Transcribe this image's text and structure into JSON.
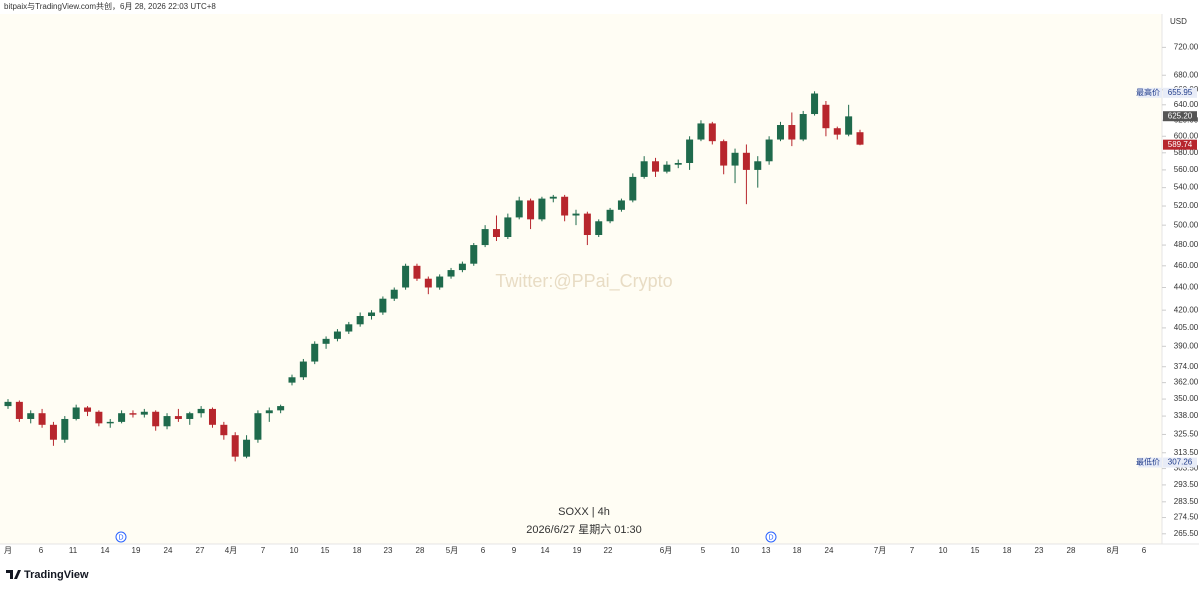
{
  "header": "bitpaix与TradingView.com共创，6月 28, 2026 22:03 UTC+8",
  "logo": "TradingView",
  "watermark": "Twitter:@PPai_Crypto",
  "chart_data": {
    "type": "candlestick",
    "title": "SOXX | 4h",
    "subtitle": "2026/6/27 星期六 01:30",
    "y_axis_label": "USD",
    "log_scale": true,
    "up_color": "#1f6a4c",
    "down_color": "#b7262d",
    "ylim": [
      260,
      771
    ],
    "yticks": [
      {
        "value": 720,
        "label": "720.00"
      },
      {
        "value": 680,
        "label": "680.00"
      },
      {
        "value": 660,
        "label": "660.00"
      },
      {
        "value": 640,
        "label": "640.00"
      },
      {
        "value": 620,
        "label": "620.00"
      },
      {
        "value": 600,
        "label": "600.00"
      },
      {
        "value": 580,
        "label": "580.00"
      },
      {
        "value": 560,
        "label": "560.00"
      },
      {
        "value": 540,
        "label": "540.00"
      },
      {
        "value": 520,
        "label": "520.00"
      },
      {
        "value": 500,
        "label": "500.00"
      },
      {
        "value": 480,
        "label": "480.00"
      },
      {
        "value": 460,
        "label": "460.00"
      },
      {
        "value": 440,
        "label": "440.00"
      },
      {
        "value": 420,
        "label": "420.00"
      },
      {
        "value": 405,
        "label": "405.00"
      },
      {
        "value": 390,
        "label": "390.00"
      },
      {
        "value": 374,
        "label": "374.00"
      },
      {
        "value": 362,
        "label": "362.00"
      },
      {
        "value": 350,
        "label": "350.00"
      },
      {
        "value": 338,
        "label": "338.00"
      },
      {
        "value": 325.5,
        "label": "325.50"
      },
      {
        "value": 313.5,
        "label": "313.50"
      },
      {
        "value": 303.5,
        "label": "303.50"
      },
      {
        "value": 293.5,
        "label": "293.50"
      },
      {
        "value": 283.5,
        "label": "283.50"
      },
      {
        "value": 274.5,
        "label": "274.50"
      },
      {
        "value": 265.5,
        "label": "265.50"
      }
    ],
    "x_labels": [
      "月",
      "6",
      "11",
      "14",
      "19",
      "24",
      "27",
      "4月",
      "7",
      "10",
      "15",
      "18",
      "23",
      "28",
      "5月",
      "6",
      "9",
      "14",
      "19",
      "22",
      "6月",
      "5",
      "10",
      "13",
      "18",
      "24",
      "7月",
      "7",
      "10",
      "15",
      "18",
      "23",
      "28",
      "8月",
      "6"
    ],
    "event_markers": [
      "D",
      "D"
    ],
    "markers": [
      {
        "name": "最高价",
        "value": 655.95
      },
      {
        "name": "最低价",
        "value": 307.26
      }
    ],
    "last_price": {
      "value": 625.2,
      "label": "625.20"
    },
    "current_price": 589.74,
    "open": [
      345,
      348,
      336,
      340,
      332,
      322,
      336,
      344,
      341,
      333,
      334,
      340,
      339,
      341,
      331,
      338,
      336,
      340,
      343,
      332,
      325,
      311,
      322,
      340,
      342,
      362,
      366,
      378,
      392,
      396,
      402,
      408,
      415,
      418,
      430,
      440,
      460,
      448,
      440,
      450,
      456,
      462,
      480,
      496,
      488,
      508,
      526,
      506,
      528,
      530,
      510,
      512,
      490,
      504,
      516,
      526,
      552,
      570,
      558,
      566,
      568,
      596,
      616,
      594,
      565,
      580,
      560,
      570,
      596,
      614,
      596,
      628,
      640,
      610,
      602,
      605
    ],
    "high": [
      350,
      349,
      342,
      343,
      334,
      338,
      346,
      345,
      342,
      336,
      342,
      342,
      343,
      342,
      340,
      343,
      341,
      345,
      344,
      334,
      327,
      325,
      342,
      344,
      346,
      368,
      380,
      394,
      398,
      404,
      410,
      418,
      420,
      432,
      440,
      462,
      462,
      450,
      452,
      458,
      464,
      482,
      500,
      510,
      512,
      530,
      528,
      530,
      532,
      532,
      516,
      514,
      506,
      518,
      528,
      556,
      576,
      574,
      570,
      572,
      600,
      620,
      618,
      596,
      585,
      590,
      576,
      600,
      618,
      630,
      632,
      658,
      645,
      612,
      640,
      608
    ],
    "low": [
      343,
      334,
      333,
      330,
      318,
      320,
      335,
      338,
      331,
      330,
      333,
      337,
      337,
      328,
      329,
      334,
      332,
      337,
      330,
      322,
      308,
      310,
      320,
      334,
      340,
      360,
      364,
      376,
      388,
      394,
      400,
      406,
      412,
      416,
      428,
      438,
      446,
      434,
      438,
      448,
      454,
      460,
      478,
      484,
      486,
      506,
      496,
      504,
      524,
      504,
      500,
      480,
      488,
      502,
      514,
      524,
      550,
      552,
      556,
      562,
      560,
      594,
      590,
      555,
      545,
      522,
      540,
      566,
      594,
      588,
      594,
      626,
      600,
      596,
      600,
      589
    ],
    "close": [
      348,
      336,
      340,
      332,
      322,
      336,
      344,
      341,
      333,
      334,
      340,
      339,
      341,
      331,
      338,
      336,
      340,
      343,
      332,
      325,
      311,
      322,
      340,
      342,
      345,
      366,
      378,
      392,
      396,
      402,
      408,
      415,
      418,
      430,
      438,
      460,
      448,
      440,
      450,
      456,
      462,
      480,
      496,
      488,
      508,
      526,
      506,
      528,
      530,
      510,
      512,
      490,
      504,
      516,
      526,
      552,
      570,
      558,
      566,
      568,
      596,
      616,
      594,
      565,
      580,
      560,
      570,
      596,
      614,
      596,
      628,
      655,
      610,
      602,
      625,
      589.74
    ]
  }
}
